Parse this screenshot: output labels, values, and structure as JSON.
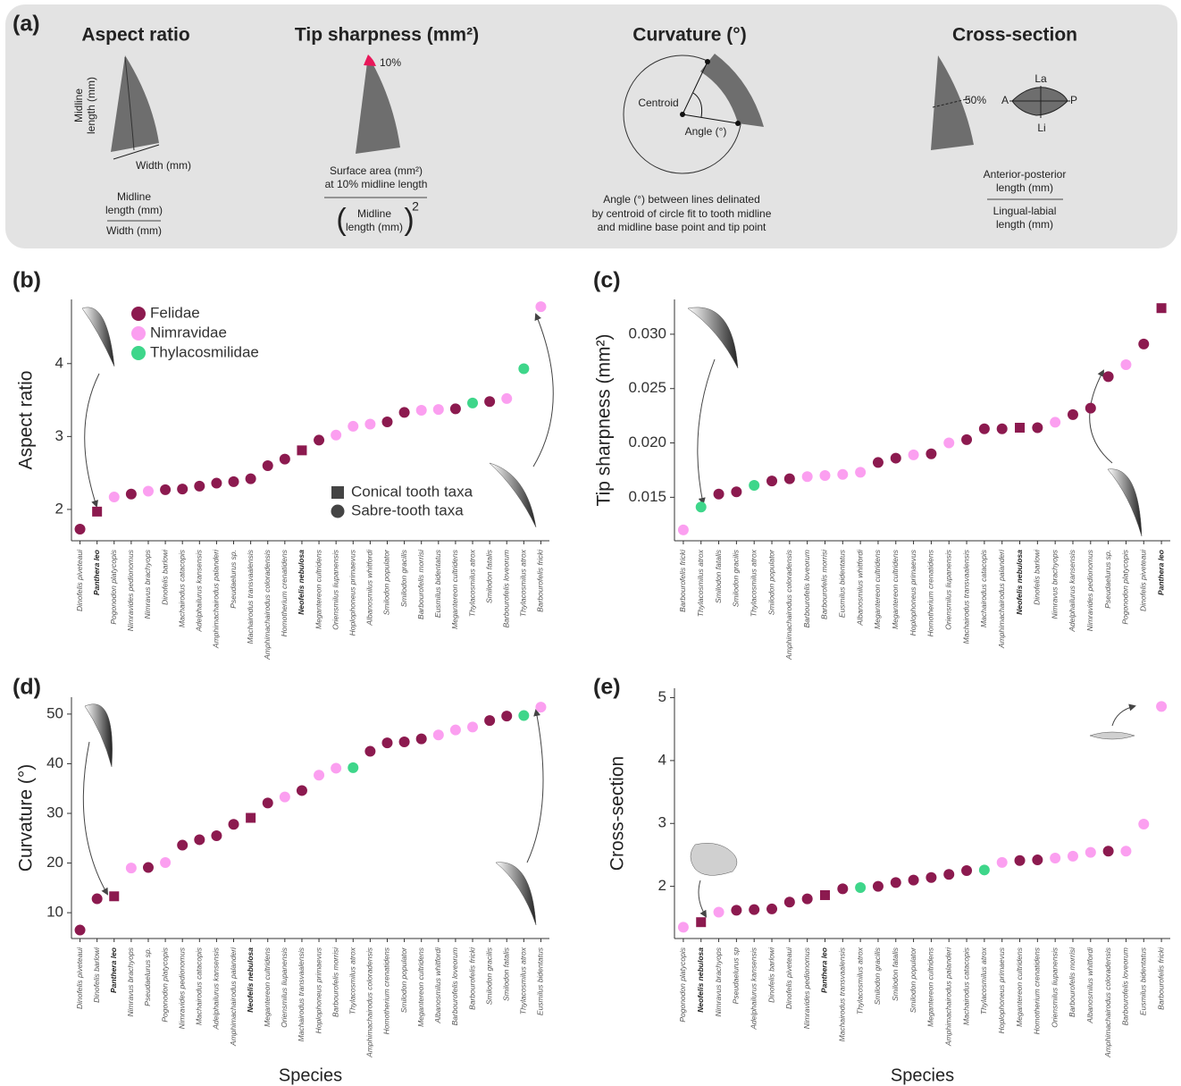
{
  "panel_a": {
    "label": "(a)",
    "sections": [
      {
        "title": "Aspect ratio",
        "texts": [
          "Midline",
          "length (mm)",
          "Width (mm)",
          "Midline",
          "length (mm)",
          "Width (mm)"
        ]
      },
      {
        "title": "Tip sharpness (mm²)",
        "texts": [
          "10%",
          "Surface area (mm²)",
          "at 10% midline length",
          "Midline",
          "length (mm)",
          "2"
        ]
      },
      {
        "title": "Curvature (°)",
        "texts": [
          "Centroid",
          "Angle (°)",
          "Angle (°) between lines delinated",
          "by centroid of circle fit to tooth midline",
          "and midline base point and tip point"
        ]
      },
      {
        "title": "Cross-section",
        "texts": [
          "50%",
          "La",
          "A",
          "P",
          "Li",
          "Anterior-posterior",
          "length (mm)",
          "Lingual-labial",
          "length (mm)"
        ]
      }
    ]
  },
  "chart_data": [
    {
      "type": "scatter",
      "panel": "(b)",
      "ylabel": "Aspect ratio",
      "ylim": [
        1.57,
        4.88
      ],
      "yticks": [
        2,
        3,
        4
      ],
      "categories": [
        "Dinofelis piveteaui",
        "Panthera leo",
        "Pogonodon platycopis",
        "Nimravides pedionomus",
        "Nimravus brachyops",
        "Dinofelis barlowi",
        "Machairodus catacopis",
        "Adelphailurus kansensis",
        "Amphimachairodus palanderi",
        "Pseudaelurus sp.",
        "Machairodus transvaalensis",
        "Amphimachairodus coloradensis",
        "Homotherium crenatidens",
        "Neofelis nebulosa",
        "Megantereon cultridens",
        "Oriensmilus liupanensis",
        "Hoplophoneus primaevus",
        "Albanosmilus whitfordi",
        "Smilodon populator",
        "Smilodon gracilis",
        "Barbourofelis morrisi",
        "Eusmilus bidentatus",
        "Megantereon cultridens",
        "Thylacosmilus atrox",
        "Smilodon fatalis",
        "Barbourofelis loveorum",
        "Thylacosmilus atrox",
        "Barbourofelis fricki"
      ],
      "values": [
        1.73,
        1.97,
        2.17,
        2.21,
        2.25,
        2.27,
        2.28,
        2.32,
        2.36,
        2.38,
        2.42,
        2.6,
        2.69,
        2.81,
        2.95,
        3.02,
        3.14,
        3.17,
        3.2,
        3.33,
        3.36,
        3.37,
        3.38,
        3.46,
        3.48,
        3.52,
        3.93,
        4.78
      ],
      "colors": [
        "#8c1a4f",
        "#8c1a4f",
        "#fb9ff0",
        "#8c1a4f",
        "#fb9ff0",
        "#8c1a4f",
        "#8c1a4f",
        "#8c1a4f",
        "#8c1a4f",
        "#8c1a4f",
        "#8c1a4f",
        "#8c1a4f",
        "#8c1a4f",
        "#8c1a4f",
        "#8c1a4f",
        "#fb9ff0",
        "#fb9ff0",
        "#fb9ff0",
        "#8c1a4f",
        "#8c1a4f",
        "#fb9ff0",
        "#fb9ff0",
        "#8c1a4f",
        "#3ed68a",
        "#8c1a4f",
        "#fb9ff0",
        "#3ed68a",
        "#fb9ff0"
      ],
      "markers": [
        "circle",
        "square",
        "circle",
        "circle",
        "circle",
        "circle",
        "circle",
        "circle",
        "circle",
        "circle",
        "circle",
        "circle",
        "circle",
        "square",
        "circle",
        "circle",
        "circle",
        "circle",
        "circle",
        "circle",
        "circle",
        "circle",
        "circle",
        "circle",
        "circle",
        "circle",
        "circle",
        "circle"
      ],
      "legend": {
        "items": [
          {
            "name": "Felidae",
            "color": "#8c1a4f"
          },
          {
            "name": "Nimravidae",
            "color": "#fb9ff0"
          },
          {
            "name": "Thylacosmilidae",
            "color": "#3ed68a"
          }
        ],
        "shapes": [
          {
            "shape": "square",
            "name": "Conical tooth taxa"
          },
          {
            "shape": "circle",
            "name": "Sabre-tooth taxa"
          }
        ]
      }
    },
    {
      "type": "scatter",
      "panel": "(c)",
      "ylabel": "Tip sharpness (mm²)",
      "ylim": [
        0.011,
        0.0332
      ],
      "yticks": [
        0.015,
        {
          "value": 0.02,
          "label": "0.020"
        },
        0.025,
        {
          "value": 0.03,
          "label": "0.030"
        }
      ],
      "categories": [
        "Barbourofelis fricki",
        "Thylacosmilus atrox",
        "Smilodon fatalis",
        "Smilodon gracilis",
        "Thylacosmilus atrox",
        "Smilodon populator",
        "Amphimachairodus coloradensis",
        "Barbourofelis loveorum",
        "Barbourofelis morrisi",
        "Eusmilus bidentatus",
        "Albanosmilus whitfordi",
        "Megantereon cultridens",
        "Megantereon cultridens",
        "Hoplophoneus primaevus",
        "Homotherium crenatidens",
        "Oriensmilus liupanensis",
        "Machairodus transvaalensis",
        "Machairodus catacopis",
        "Amphimachairodus palanderi",
        "Neofelis nebulosa",
        "Dinofelis barlowi",
        "Nimravus brachyops",
        "Adelphailurus kansensis",
        "Nimravides pedionomus",
        "Pseudaelurus sp.",
        "Pogonodon platycopis",
        "Dinofelis piveteaui",
        "Panthera leo"
      ],
      "values": [
        0.012,
        0.0141,
        0.0153,
        0.0155,
        0.0161,
        0.0165,
        0.0167,
        0.0169,
        0.017,
        0.0171,
        0.0173,
        0.0182,
        0.0186,
        0.0189,
        0.019,
        0.02,
        0.0203,
        0.0213,
        0.0213,
        0.0214,
        0.0214,
        0.0219,
        0.0226,
        0.0232,
        0.0261,
        0.0272,
        0.0291,
        0.0324
      ],
      "colors": [
        "#fb9ff0",
        "#3ed68a",
        "#8c1a4f",
        "#8c1a4f",
        "#3ed68a",
        "#8c1a4f",
        "#8c1a4f",
        "#fb9ff0",
        "#fb9ff0",
        "#fb9ff0",
        "#fb9ff0",
        "#8c1a4f",
        "#8c1a4f",
        "#fb9ff0",
        "#8c1a4f",
        "#fb9ff0",
        "#8c1a4f",
        "#8c1a4f",
        "#8c1a4f",
        "#8c1a4f",
        "#8c1a4f",
        "#fb9ff0",
        "#8c1a4f",
        "#8c1a4f",
        "#8c1a4f",
        "#fb9ff0",
        "#8c1a4f",
        "#8c1a4f"
      ],
      "markers": [
        "circle",
        "circle",
        "circle",
        "circle",
        "circle",
        "circle",
        "circle",
        "circle",
        "circle",
        "circle",
        "circle",
        "circle",
        "circle",
        "circle",
        "circle",
        "circle",
        "circle",
        "circle",
        "circle",
        "square",
        "circle",
        "circle",
        "circle",
        "circle",
        "circle",
        "circle",
        "circle",
        "square"
      ]
    },
    {
      "type": "scatter",
      "panel": "(d)",
      "ylabel": "Curvature (°)",
      "xlabel": "Species",
      "ylim": [
        4.8,
        53.4
      ],
      "yticks": [
        10,
        20,
        30,
        40,
        50
      ],
      "categories": [
        "Dinofelis piveteaui",
        "Dinofelis barlowi",
        "Panthera leo",
        "Nimravus brachyops",
        "Pseudaelurus sp.",
        "Pogonodon platycopis",
        "Nimravides pedionomus",
        "Machairodus catacopis",
        "Adelphailurus kansensis",
        "Amphimachairodus palanderi",
        "Neofelis nebulosa",
        "Megantereon cultridens",
        "Oriensmilus liupanensis",
        "Machairodus transvaalensis",
        "Hoplophoneus primaevus",
        "Barbourofelis morrisi",
        "Thylacosmilus atrox",
        "Amphimachairodus coloradensis",
        "Homotherium crenatidens",
        "Smilodon populator",
        "Megantereon cultridens",
        "Albanosmilus whitfordi",
        "Barbourofelis loveorum",
        "Barbourofelis fricki",
        "Smilodon gracilis",
        "Smilodon fatalis",
        "Thylacosmilus atrox",
        "Eusmilus bidentatus"
      ],
      "values": [
        6.5,
        12.8,
        13.3,
        19,
        19.1,
        20.1,
        23.6,
        24.7,
        25.5,
        27.8,
        29.1,
        32.1,
        33.3,
        34.6,
        37.7,
        39.1,
        39.2,
        42.5,
        44.2,
        44.4,
        45,
        45.8,
        46.8,
        47.4,
        48.7,
        49.6,
        49.7,
        51.4
      ],
      "colors": [
        "#8c1a4f",
        "#8c1a4f",
        "#8c1a4f",
        "#fb9ff0",
        "#8c1a4f",
        "#fb9ff0",
        "#8c1a4f",
        "#8c1a4f",
        "#8c1a4f",
        "#8c1a4f",
        "#8c1a4f",
        "#8c1a4f",
        "#fb9ff0",
        "#8c1a4f",
        "#fb9ff0",
        "#fb9ff0",
        "#3ed68a",
        "#8c1a4f",
        "#8c1a4f",
        "#8c1a4f",
        "#8c1a4f",
        "#fb9ff0",
        "#fb9ff0",
        "#fb9ff0",
        "#8c1a4f",
        "#8c1a4f",
        "#3ed68a",
        "#fb9ff0"
      ],
      "markers": [
        "circle",
        "circle",
        "square",
        "circle",
        "circle",
        "circle",
        "circle",
        "circle",
        "circle",
        "circle",
        "square",
        "circle",
        "circle",
        "circle",
        "circle",
        "circle",
        "circle",
        "circle",
        "circle",
        "circle",
        "circle",
        "circle",
        "circle",
        "circle",
        "circle",
        "circle",
        "circle",
        "circle"
      ]
    },
    {
      "type": "scatter",
      "panel": "(e)",
      "ylabel": "Cross-section",
      "xlabel": "Species",
      "ylim": [
        1.17,
        5.15
      ],
      "yticks": [
        2,
        3,
        4,
        5
      ],
      "categories": [
        "Pogonodon platycopis",
        "Neofelis nebulosa",
        "Nimravus brachyops",
        "Pseudaelurus sp",
        "Adelphailurus kansensis",
        "Dinofelis barlowi",
        "Dinofelis piveteaui",
        "Nimravides pedionomus",
        "Panthera leo",
        "Machairodus transvaalensis",
        "Thylacosmilus atrox",
        "Smilodon gracilis",
        "Smilodon fatalis",
        "Smilodon populator",
        "Megantereon cultridens",
        "Amphimachairodus palanderi",
        "Machairodus catacopis",
        "Thylacosmilus atrox",
        "Hoplophoneus primaevus",
        "Megantereon cultridens",
        "Homotherium crenatidens",
        "Oriensmilus liupanensis",
        "Barbourofelis morrisi",
        "Albanosmilus whitfordi",
        "Amphimachairodus coloradensis",
        "Barbourofelis loveorum",
        "Eusmilus bidentatus",
        "Barbourofelis fricki"
      ],
      "values": [
        1.35,
        1.43,
        1.59,
        1.62,
        1.63,
        1.64,
        1.75,
        1.8,
        1.86,
        1.96,
        1.98,
        2,
        2.06,
        2.1,
        2.14,
        2.19,
        2.25,
        2.26,
        2.38,
        2.41,
        2.42,
        2.45,
        2.48,
        2.54,
        2.56,
        2.56,
        2.99,
        4.86
      ],
      "colors": [
        "#fb9ff0",
        "#8c1a4f",
        "#fb9ff0",
        "#8c1a4f",
        "#8c1a4f",
        "#8c1a4f",
        "#8c1a4f",
        "#8c1a4f",
        "#8c1a4f",
        "#8c1a4f",
        "#3ed68a",
        "#8c1a4f",
        "#8c1a4f",
        "#8c1a4f",
        "#8c1a4f",
        "#8c1a4f",
        "#8c1a4f",
        "#3ed68a",
        "#fb9ff0",
        "#8c1a4f",
        "#8c1a4f",
        "#fb9ff0",
        "#fb9ff0",
        "#fb9ff0",
        "#8c1a4f",
        "#fb9ff0",
        "#fb9ff0",
        "#fb9ff0"
      ],
      "markers": [
        "circle",
        "square",
        "circle",
        "circle",
        "circle",
        "circle",
        "circle",
        "circle",
        "square",
        "circle",
        "circle",
        "circle",
        "circle",
        "circle",
        "circle",
        "circle",
        "circle",
        "circle",
        "circle",
        "circle",
        "circle",
        "circle",
        "circle",
        "circle",
        "circle",
        "circle",
        "circle",
        "circle"
      ]
    }
  ]
}
